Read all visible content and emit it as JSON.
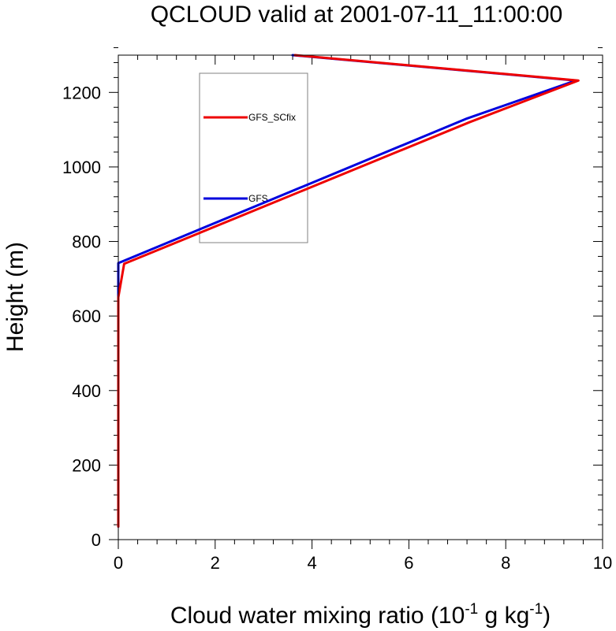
{
  "chart_data": {
    "type": "line",
    "title": "QCLOUD valid at 2001-07-11_11:00:00",
    "xlabel": {
      "main": "Cloud water mixing ratio (10",
      "sup1": "-1",
      "mid": " g kg",
      "sup2": "-1",
      "end": ")"
    },
    "ylabel": "Height (m)",
    "xlim": [
      0,
      10
    ],
    "ylim": [
      0,
      1300
    ],
    "xticks": [
      0,
      2,
      4,
      6,
      8,
      10
    ],
    "yticks": [
      0,
      200,
      400,
      600,
      800,
      1000,
      1200
    ],
    "grid": false,
    "legend_position": "upper-left",
    "series": [
      {
        "name": "GFS",
        "color": "#0000dd",
        "points": [
          [
            0.0,
            35
          ],
          [
            0.0,
            650
          ],
          [
            0.0,
            742
          ],
          [
            7.2,
            1130
          ],
          [
            9.45,
            1232
          ],
          [
            3.6,
            1300
          ]
        ]
      },
      {
        "name": "GFS_SCfix",
        "color": "#ee0000",
        "points": [
          [
            0.0,
            35
          ],
          [
            0.0,
            650
          ],
          [
            0.12,
            740
          ],
          [
            7.25,
            1120
          ],
          [
            9.5,
            1232
          ],
          [
            3.65,
            1300
          ]
        ]
      }
    ]
  }
}
